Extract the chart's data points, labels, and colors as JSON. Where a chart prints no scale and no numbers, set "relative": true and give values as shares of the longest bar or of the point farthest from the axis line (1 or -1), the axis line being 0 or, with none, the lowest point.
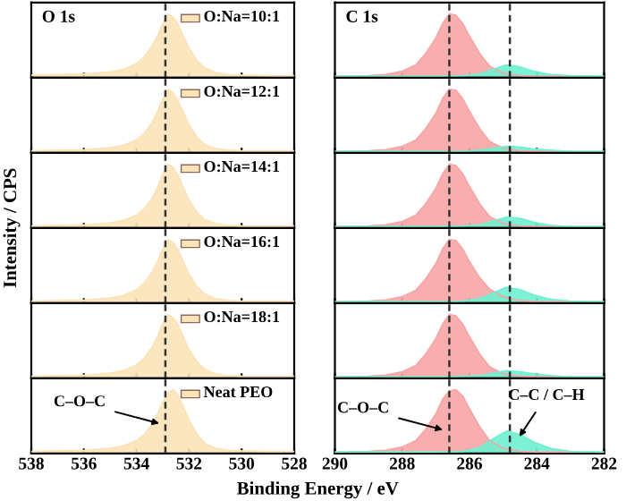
{
  "chart_data": [
    {
      "type": "area",
      "title": "O 1s",
      "relative": true,
      "tick_labels": false,
      "xlim": [
        538,
        528
      ],
      "xticks": [
        538,
        536,
        534,
        532,
        530,
        528
      ],
      "x": [
        538,
        537,
        536,
        535,
        534.5,
        534,
        533.7,
        533.4,
        533.2,
        533,
        532.8,
        532.6,
        532.4,
        532.2,
        532,
        531.7,
        531.4,
        531,
        530.5,
        530,
        529,
        528
      ],
      "series": [
        {
          "name": "O:Na=10:1",
          "color": "#fbe3b8",
          "values": [
            0.04,
            0.05,
            0.06,
            0.09,
            0.13,
            0.22,
            0.33,
            0.5,
            0.66,
            0.85,
            1,
            0.95,
            0.82,
            0.64,
            0.46,
            0.27,
            0.15,
            0.08,
            0.05,
            0.04,
            0.03,
            0.03
          ]
        }
      ],
      "ref_lines": [
        {
          "axis": "x",
          "value": 532.9,
          "color": "#333333",
          "line_style": "dashed"
        }
      ]
    },
    {
      "type": "area",
      "title": "C 1s",
      "relative": true,
      "tick_labels": false,
      "xlim": [
        290,
        282
      ],
      "xticks": [
        290,
        288,
        286,
        284,
        282
      ],
      "series": [
        {
          "color": "#f7a5a5",
          "x": [
            290,
            289,
            288.5,
            288,
            287.6,
            287.3,
            287,
            286.8,
            286.6,
            286.4,
            286.2,
            286,
            285.7,
            285.4,
            285,
            284.5,
            284,
            283.5,
            283,
            282
          ],
          "values": [
            0.02,
            0.03,
            0.05,
            0.1,
            0.2,
            0.38,
            0.62,
            0.85,
            1,
            0.98,
            0.85,
            0.65,
            0.38,
            0.18,
            0.07,
            0.03,
            0.02,
            0.02,
            0.02,
            0.02
          ]
        },
        {
          "color": "#6ff0d0",
          "x": [
            290,
            287,
            286.2,
            285.7,
            285.3,
            284.9,
            284.5,
            284.1,
            283.6,
            283,
            282
          ],
          "values": [
            0.02,
            0.02,
            0.03,
            0.06,
            0.13,
            0.2,
            0.17,
            0.1,
            0.05,
            0.03,
            0.02
          ]
        }
      ],
      "ref_lines": [
        {
          "axis": "x",
          "value": 286.6,
          "color": "#333333",
          "line_style": "dashed"
        },
        {
          "axis": "x",
          "value": 284.8,
          "color": "#333333",
          "line_style": "dashed"
        }
      ]
    },
    {
      "type": "area",
      "relative": true,
      "tick_labels": false,
      "xlim": [
        538,
        528
      ],
      "xticks": [
        538,
        536,
        534,
        532,
        530,
        528
      ],
      "x": [
        538,
        537,
        536,
        535,
        534.5,
        534,
        533.7,
        533.4,
        533.2,
        533,
        532.8,
        532.6,
        532.4,
        532.2,
        532,
        531.7,
        531.4,
        531,
        530.5,
        530,
        529,
        528
      ],
      "series": [
        {
          "name": "O:Na=12:1",
          "color": "#fbe3b8",
          "values": [
            0.03,
            0.04,
            0.05,
            0.08,
            0.12,
            0.2,
            0.31,
            0.48,
            0.65,
            0.84,
            1,
            0.94,
            0.8,
            0.62,
            0.44,
            0.25,
            0.13,
            0.07,
            0.04,
            0.03,
            0.03,
            0.03
          ]
        }
      ],
      "ref_lines": [
        {
          "axis": "x",
          "value": 532.9,
          "color": "#333333",
          "line_style": "dashed"
        }
      ]
    },
    {
      "type": "area",
      "relative": true,
      "tick_labels": false,
      "xlim": [
        290,
        282
      ],
      "xticks": [
        290,
        288,
        286,
        284,
        282
      ],
      "series": [
        {
          "color": "#f7a5a5",
          "x": [
            290,
            289,
            288.5,
            288,
            287.6,
            287.3,
            287,
            286.8,
            286.6,
            286.4,
            286.2,
            286,
            285.7,
            285.4,
            285,
            284.5,
            284,
            283.5,
            283,
            282
          ],
          "values": [
            0.02,
            0.03,
            0.05,
            0.1,
            0.2,
            0.38,
            0.62,
            0.85,
            1,
            0.98,
            0.85,
            0.65,
            0.38,
            0.18,
            0.07,
            0.03,
            0.02,
            0.02,
            0.02,
            0.02
          ]
        },
        {
          "color": "#6ff0d0",
          "x": [
            290,
            287,
            286.2,
            285.7,
            285.3,
            284.9,
            284.5,
            284.1,
            283.6,
            283,
            282
          ],
          "values": [
            0.02,
            0.02,
            0.02,
            0.04,
            0.07,
            0.1,
            0.09,
            0.06,
            0.04,
            0.02,
            0.02
          ]
        }
      ],
      "ref_lines": [
        {
          "axis": "x",
          "value": 286.6,
          "color": "#333333",
          "line_style": "dashed"
        },
        {
          "axis": "x",
          "value": 284.8,
          "color": "#333333",
          "line_style": "dashed"
        }
      ]
    },
    {
      "type": "area",
      "relative": true,
      "tick_labels": false,
      "xlim": [
        538,
        528
      ],
      "xticks": [
        538,
        536,
        534,
        532,
        530,
        528
      ],
      "x": [
        538,
        537,
        536,
        535,
        534.5,
        534,
        533.7,
        533.4,
        533.2,
        533,
        532.8,
        532.6,
        532.4,
        532.2,
        532,
        531.7,
        531.4,
        531,
        530.5,
        530,
        529,
        528
      ],
      "series": [
        {
          "name": "O:Na=14:1",
          "color": "#fbe3b8",
          "values": [
            0.03,
            0.04,
            0.05,
            0.08,
            0.12,
            0.2,
            0.3,
            0.47,
            0.64,
            0.84,
            1,
            0.95,
            0.81,
            0.62,
            0.44,
            0.25,
            0.13,
            0.07,
            0.04,
            0.03,
            0.03,
            0.03
          ]
        }
      ],
      "ref_lines": [
        {
          "axis": "x",
          "value": 532.9,
          "color": "#333333",
          "line_style": "dashed"
        }
      ]
    },
    {
      "type": "area",
      "relative": true,
      "tick_labels": false,
      "xlim": [
        290,
        282
      ],
      "xticks": [
        290,
        288,
        286,
        284,
        282
      ],
      "series": [
        {
          "color": "#f7a5a5",
          "x": [
            290,
            289,
            288.5,
            288,
            287.6,
            287.3,
            287,
            286.8,
            286.6,
            286.4,
            286.2,
            286,
            285.7,
            285.4,
            285,
            284.5,
            284,
            283.5,
            283,
            282
          ],
          "values": [
            0.02,
            0.03,
            0.05,
            0.1,
            0.2,
            0.38,
            0.62,
            0.85,
            1,
            0.98,
            0.85,
            0.65,
            0.38,
            0.18,
            0.07,
            0.03,
            0.02,
            0.02,
            0.02,
            0.02
          ]
        },
        {
          "color": "#6ff0d0",
          "x": [
            290,
            287,
            286.2,
            285.7,
            285.3,
            284.9,
            284.5,
            284.1,
            283.6,
            283,
            282
          ],
          "values": [
            0.02,
            0.02,
            0.03,
            0.05,
            0.11,
            0.17,
            0.15,
            0.09,
            0.04,
            0.02,
            0.02
          ]
        }
      ],
      "ref_lines": [
        {
          "axis": "x",
          "value": 286.6,
          "color": "#333333",
          "line_style": "dashed"
        },
        {
          "axis": "x",
          "value": 284.8,
          "color": "#333333",
          "line_style": "dashed"
        }
      ]
    },
    {
      "type": "area",
      "ylabel": "Intensity / CPS",
      "relative": true,
      "tick_labels": false,
      "xlim": [
        538,
        528
      ],
      "xticks": [
        538,
        536,
        534,
        532,
        530,
        528
      ],
      "x": [
        538,
        537,
        536,
        535,
        534.5,
        534,
        533.7,
        533.4,
        533.2,
        533,
        532.8,
        532.6,
        532.4,
        532.2,
        532,
        531.7,
        531.4,
        531,
        530.5,
        530,
        529,
        528
      ],
      "series": [
        {
          "name": "O:Na=16:1",
          "color": "#fbe3b8",
          "values": [
            0.03,
            0.04,
            0.05,
            0.08,
            0.12,
            0.21,
            0.32,
            0.49,
            0.66,
            0.85,
            1,
            0.95,
            0.82,
            0.63,
            0.45,
            0.26,
            0.14,
            0.07,
            0.04,
            0.03,
            0.03,
            0.03
          ]
        }
      ],
      "ref_lines": [
        {
          "axis": "x",
          "value": 532.9,
          "color": "#333333",
          "line_style": "dashed"
        }
      ]
    },
    {
      "type": "area",
      "relative": true,
      "tick_labels": false,
      "xlim": [
        290,
        282
      ],
      "xticks": [
        290,
        288,
        286,
        284,
        282
      ],
      "series": [
        {
          "color": "#f7a5a5",
          "x": [
            290,
            289,
            288.5,
            288,
            287.6,
            287.3,
            287,
            286.8,
            286.6,
            286.4,
            286.2,
            286,
            285.7,
            285.4,
            285,
            284.5,
            284,
            283.5,
            283,
            282
          ],
          "values": [
            0.02,
            0.03,
            0.05,
            0.1,
            0.2,
            0.38,
            0.62,
            0.85,
            1,
            0.98,
            0.85,
            0.65,
            0.4,
            0.22,
            0.1,
            0.04,
            0.02,
            0.02,
            0.02,
            0.02
          ]
        },
        {
          "color": "#6ff0d0",
          "x": [
            290,
            287,
            286.2,
            285.7,
            285.3,
            284.9,
            284.5,
            284.1,
            283.6,
            283,
            282
          ],
          "values": [
            0.02,
            0.02,
            0.03,
            0.07,
            0.16,
            0.25,
            0.21,
            0.13,
            0.06,
            0.03,
            0.02
          ]
        }
      ],
      "ref_lines": [
        {
          "axis": "x",
          "value": 286.6,
          "color": "#333333",
          "line_style": "dashed"
        },
        {
          "axis": "x",
          "value": 284.8,
          "color": "#333333",
          "line_style": "dashed"
        }
      ]
    },
    {
      "type": "area",
      "relative": true,
      "tick_labels": false,
      "xlim": [
        538,
        528
      ],
      "xticks": [
        538,
        536,
        534,
        532,
        530,
        528
      ],
      "x": [
        538,
        537,
        536,
        535,
        534.5,
        534,
        533.7,
        533.4,
        533.2,
        533,
        532.8,
        532.6,
        532.4,
        532.2,
        532,
        531.7,
        531.4,
        531,
        530.5,
        530,
        529,
        528
      ],
      "series": [
        {
          "name": "O:Na=18:1",
          "color": "#fbe3b8",
          "values": [
            0.03,
            0.04,
            0.05,
            0.08,
            0.12,
            0.21,
            0.32,
            0.49,
            0.66,
            0.86,
            1,
            0.95,
            0.82,
            0.63,
            0.45,
            0.26,
            0.14,
            0.07,
            0.04,
            0.03,
            0.03,
            0.03
          ]
        }
      ],
      "ref_lines": [
        {
          "axis": "x",
          "value": 532.9,
          "color": "#333333",
          "line_style": "dashed"
        }
      ]
    },
    {
      "type": "area",
      "relative": true,
      "tick_labels": false,
      "xlim": [
        290,
        282
      ],
      "xticks": [
        290,
        288,
        286,
        284,
        282
      ],
      "series": [
        {
          "color": "#f7a5a5",
          "x": [
            290,
            289,
            288.5,
            288,
            287.6,
            287.3,
            287,
            286.8,
            286.6,
            286.4,
            286.2,
            286,
            285.7,
            285.4,
            285,
            284.5,
            284,
            283.5,
            283,
            282
          ],
          "values": [
            0.02,
            0.03,
            0.05,
            0.1,
            0.2,
            0.38,
            0.62,
            0.85,
            1,
            0.98,
            0.85,
            0.65,
            0.38,
            0.18,
            0.07,
            0.03,
            0.02,
            0.02,
            0.02,
            0.02
          ]
        },
        {
          "color": "#6ff0d0",
          "x": [
            290,
            287,
            286.2,
            285.7,
            285.3,
            284.9,
            284.5,
            284.1,
            283.6,
            283,
            282
          ],
          "values": [
            0.02,
            0.02,
            0.03,
            0.04,
            0.08,
            0.12,
            0.1,
            0.07,
            0.04,
            0.02,
            0.02
          ]
        }
      ],
      "ref_lines": [
        {
          "axis": "x",
          "value": 286.6,
          "color": "#333333",
          "line_style": "dashed"
        },
        {
          "axis": "x",
          "value": 284.8,
          "color": "#333333",
          "line_style": "dashed"
        }
      ]
    },
    {
      "type": "area",
      "xlabel": "Binding Energy / eV",
      "relative": true,
      "tick_labels": "x",
      "xlim": [
        538,
        528
      ],
      "xticks": [
        538,
        536,
        534,
        532,
        530,
        528
      ],
      "x": [
        538,
        537,
        536,
        535,
        534.5,
        534,
        533.7,
        533.4,
        533.2,
        533,
        532.8,
        532.6,
        532.4,
        532.2,
        532,
        531.7,
        531.4,
        531,
        530.5,
        530,
        529,
        528
      ],
      "series": [
        {
          "name": "Neat PEO",
          "color": "#fbe3b8",
          "values": [
            0.03,
            0.04,
            0.05,
            0.08,
            0.12,
            0.2,
            0.3,
            0.46,
            0.62,
            0.8,
            0.96,
            1,
            0.9,
            0.72,
            0.52,
            0.3,
            0.16,
            0.08,
            0.05,
            0.04,
            0.03,
            0.03
          ]
        }
      ],
      "ref_lines": [
        {
          "axis": "x",
          "value": 532.9,
          "color": "#333333",
          "line_style": "dashed"
        }
      ],
      "annotations": [
        {
          "text": "C–O–C",
          "x": 532.95,
          "y": 0.45
        }
      ]
    },
    {
      "type": "area",
      "relative": true,
      "tick_labels": "x",
      "xlim": [
        290,
        282
      ],
      "xticks": [
        290,
        288,
        286,
        284,
        282
      ],
      "series": [
        {
          "color": "#f7a5a5",
          "x": [
            290,
            289,
            288.5,
            288,
            287.6,
            287.3,
            287,
            286.8,
            286.6,
            286.4,
            286.2,
            286,
            285.7,
            285.4,
            285,
            284.5,
            284,
            283.5,
            283,
            282
          ],
          "values": [
            0.02,
            0.03,
            0.05,
            0.1,
            0.2,
            0.38,
            0.62,
            0.85,
            0.98,
            1,
            0.9,
            0.7,
            0.42,
            0.2,
            0.08,
            0.03,
            0.02,
            0.02,
            0.02,
            0.02
          ]
        },
        {
          "color": "#6ff0d0",
          "x": [
            290,
            287,
            286.2,
            285.7,
            285.3,
            284.9,
            284.5,
            284.1,
            283.6,
            283,
            282
          ],
          "values": [
            0.02,
            0.02,
            0.03,
            0.09,
            0.23,
            0.35,
            0.3,
            0.18,
            0.08,
            0.03,
            0.02
          ]
        }
      ],
      "ref_lines": [
        {
          "axis": "x",
          "value": 286.6,
          "color": "#333333",
          "line_style": "dashed"
        },
        {
          "axis": "x",
          "value": 284.8,
          "color": "#333333",
          "line_style": "dashed"
        }
      ],
      "annotations": [
        {
          "text": "C–O–C",
          "x": 286.65,
          "y": 0.35
        },
        {
          "text": "C–C / C–H",
          "x": 284.6,
          "y": 0.2
        }
      ]
    }
  ]
}
